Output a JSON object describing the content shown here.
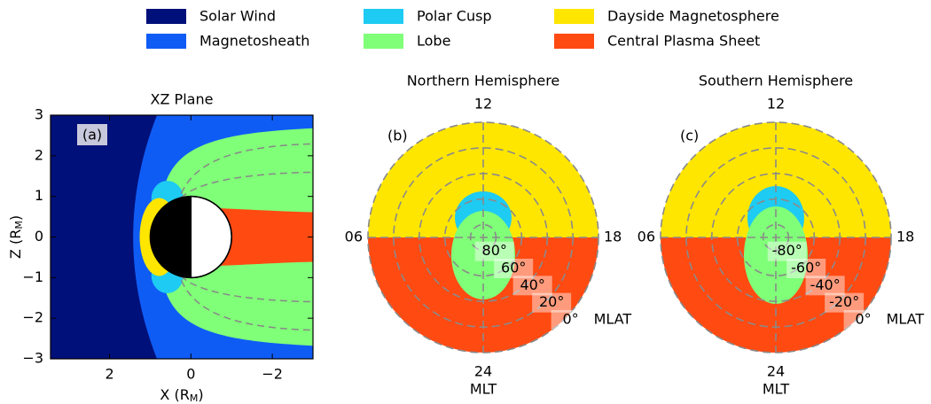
{
  "legend": [
    {
      "name": "Solar Wind",
      "color": "#00107a"
    },
    {
      "name": "Magnetosheath",
      "color": "#0f5cf5"
    },
    {
      "name": "Polar Cusp",
      "color": "#1ecbf2"
    },
    {
      "name": "Lobe",
      "color": "#80ff78"
    },
    {
      "name": "Dayside Magnetosphere",
      "color": "#ffe600"
    },
    {
      "name": "Central Plasma Sheet",
      "color": "#ff4a12"
    }
  ],
  "chart_data": [
    {
      "type": "region-map",
      "title": "XZ Plane",
      "panel_label": "(a)",
      "xlabel": [
        "X (R",
        "M",
        ")"
      ],
      "ylabel": [
        "Z (R",
        "M",
        ")"
      ],
      "xlim": [
        3.45,
        -3
      ],
      "ylim": [
        -3,
        3
      ],
      "xticks": [
        2,
        0,
        {
          "value": -2,
          "label": "−2"
        }
      ],
      "yticks": [
        3,
        2,
        1,
        0,
        {
          "value": -1,
          "label": "−1"
        },
        {
          "value": -2,
          "label": "−2"
        },
        {
          "value": -3,
          "label": "−3"
        }
      ]
    },
    {
      "type": "polar-region",
      "title": "Northern Hemisphere",
      "panel_label": "(b)",
      "theta_labels": {
        "top": "12",
        "left": "06",
        "right": "18",
        "bottom": "24"
      },
      "theta_title": "MLT",
      "rlabel": "MLAT",
      "rticks": [
        {
          "value": 80,
          "label": "80°"
        },
        {
          "value": 60,
          "label": "60°"
        },
        {
          "value": 40,
          "label": "40°"
        },
        {
          "value": 20,
          "label": "20°"
        },
        {
          "value": 0,
          "label": "0°"
        }
      ]
    },
    {
      "type": "polar-region",
      "title": "Southern Hemisphere",
      "panel_label": "(c)",
      "theta_labels": {
        "top": "12",
        "left": "06",
        "right": "18",
        "bottom": "24"
      },
      "theta_title": "MLT",
      "rlabel": "MLAT",
      "rticks": [
        {
          "value": -80,
          "label": "-80°"
        },
        {
          "value": -60,
          "label": "-60°"
        },
        {
          "value": -40,
          "label": "-40°"
        },
        {
          "value": -20,
          "label": "-20°"
        },
        {
          "value": 0,
          "label": "0°"
        }
      ]
    }
  ]
}
